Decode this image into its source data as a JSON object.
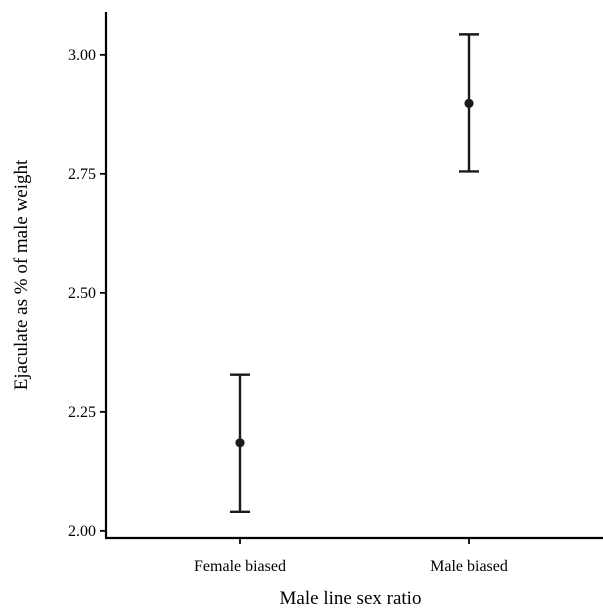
{
  "chart_data": {
    "type": "scatter",
    "title": "",
    "xlabel": "Male line sex ratio",
    "ylabel": "Ejaculate as % of male weight",
    "categories": [
      "Female biased",
      "Male biased"
    ],
    "series": [
      {
        "values": [
          2.185,
          2.898
        ],
        "error_lower": [
          2.04,
          2.755
        ],
        "error_upper": [
          2.328,
          3.043
        ]
      }
    ],
    "ylim": [
      1.985,
      3.09
    ],
    "yticks": [
      2.0,
      2.25,
      2.5,
      2.75,
      3.0
    ],
    "ytick_labels": [
      "2.00",
      "2.25",
      "2.50",
      "2.75",
      "3.00"
    ],
    "grid": false,
    "legend": "none",
    "colors": {
      "axis": "#000000",
      "marker": "#1a1a1a",
      "errorbar": "#1a1a1a"
    }
  }
}
